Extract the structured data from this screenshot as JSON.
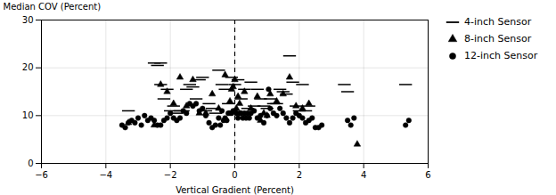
{
  "chart_data": {
    "type": "scatter",
    "title": "",
    "xlabel": "Vertical Gradient (Percent)",
    "ylabel": "Median COV (Percent)",
    "xlim": [
      -6,
      6
    ],
    "ylim": [
      0,
      30
    ],
    "xticks": [
      -6,
      -4,
      -2,
      0,
      2,
      4,
      6
    ],
    "yticks": [
      0,
      10,
      20,
      30
    ],
    "vline_x": 0,
    "grid": true,
    "legend": "upper right",
    "series": [
      {
        "name": "4-inch Sensor",
        "color": "#000000",
        "marker": "dash",
        "x": [
          -3.3,
          -2.5,
          -2.4,
          -2.3,
          -2.3,
          -2.2,
          -2.1,
          -2.0,
          -1.9,
          -1.8,
          -1.7,
          -1.6,
          -1.5,
          -1.4,
          -1.3,
          -1.2,
          -1.1,
          -1.0,
          -0.9,
          -0.8,
          -0.7,
          -0.6,
          -0.5,
          -0.4,
          -0.3,
          -0.2,
          -0.1,
          0.0,
          0.1,
          0.2,
          0.3,
          0.4,
          0.5,
          0.6,
          0.7,
          0.8,
          0.9,
          1.0,
          1.1,
          1.2,
          1.3,
          1.4,
          1.5,
          1.6,
          1.7,
          1.8,
          1.9,
          2.0,
          2.1,
          2.2,
          2.3,
          3.4,
          3.5,
          5.3
        ],
        "values": [
          11.0,
          21.0,
          20.5,
          16.5,
          21.0,
          13.5,
          15.5,
          11.0,
          12.0,
          10.5,
          11.0,
          11.0,
          15.5,
          16.5,
          16.0,
          13.5,
          17.5,
          18.0,
          11.0,
          12.5,
          11.5,
          10.5,
          19.5,
          16.5,
          15.5,
          12.5,
          18.0,
          16.5,
          17.5,
          13.5,
          15.5,
          11.5,
          17.0,
          12.0,
          15.5,
          13.5,
          12.0,
          11.5,
          13.5,
          12.5,
          12.5,
          15.5,
          15.0,
          14.5,
          22.5,
          17.0,
          12.0,
          11.0,
          16.5,
          11.0,
          12.0,
          16.5,
          15.0,
          16.5
        ]
      },
      {
        "name": "8-inch Sensor",
        "color": "#000000",
        "marker": "triangle",
        "x": [
          -3.3,
          -2.5,
          -2.3,
          -2.1,
          -1.9,
          -1.7,
          -1.5,
          -1.3,
          -1.1,
          -0.9,
          -0.7,
          -0.5,
          -0.3,
          -0.15,
          -0.1,
          -0.05,
          0.0,
          0.05,
          0.1,
          0.15,
          0.3,
          0.5,
          0.7,
          0.8,
          0.9,
          1.0,
          1.1,
          1.3,
          1.5,
          1.7,
          1.9,
          2.1,
          2.3,
          3.8
        ],
        "values": [
          8.5,
          8.0,
          16.5,
          15.0,
          12.5,
          18.0,
          12.0,
          17.5,
          10.5,
          10.5,
          14.5,
          11.5,
          18.5,
          13.0,
          15.5,
          16.0,
          17.5,
          11.5,
          14.0,
          12.5,
          15.0,
          11.5,
          14.0,
          9.0,
          10.5,
          10.0,
          14.5,
          13.0,
          14.5,
          18.0,
          12.0,
          11.5,
          12.5,
          4.0
        ]
      },
      {
        "name": "12-inch Sensor",
        "color": "#000000",
        "marker": "circle",
        "x": [
          -3.5,
          -3.4,
          -3.3,
          -3.2,
          -3.1,
          -3.0,
          -2.9,
          -2.8,
          -2.7,
          -2.6,
          -2.5,
          -2.4,
          -2.3,
          -2.2,
          -2.1,
          -2.0,
          -1.9,
          -1.8,
          -1.7,
          -1.6,
          -1.5,
          -1.4,
          -1.3,
          -1.2,
          -1.1,
          -1.0,
          -0.9,
          -0.8,
          -0.7,
          -0.6,
          -0.5,
          -0.45,
          -0.4,
          -0.35,
          -0.3,
          -0.25,
          -0.2,
          -0.15,
          -0.1,
          -0.05,
          0.0,
          0.05,
          0.1,
          0.15,
          0.2,
          0.25,
          0.3,
          0.35,
          0.4,
          0.45,
          0.5,
          0.6,
          0.7,
          0.8,
          0.9,
          1.0,
          1.05,
          1.1,
          1.2,
          1.3,
          1.4,
          1.5,
          1.6,
          1.7,
          1.8,
          1.9,
          2.0,
          2.1,
          2.2,
          2.3,
          2.4,
          2.5,
          2.6,
          2.7,
          3.5,
          3.6,
          3.7,
          5.3,
          5.4
        ],
        "values": [
          8.0,
          7.5,
          8.5,
          9.0,
          8.5,
          9.5,
          8.0,
          10.0,
          9.0,
          9.5,
          9.0,
          8.0,
          8.0,
          9.0,
          9.5,
          10.5,
          9.5,
          9.0,
          9.5,
          11.0,
          10.5,
          12.5,
          12.0,
          12.5,
          11.0,
          11.5,
          10.0,
          8.5,
          7.5,
          8.0,
          9.5,
          8.0,
          11.0,
          9.0,
          9.5,
          9.0,
          10.5,
          10.5,
          10.5,
          11.0,
          11.0,
          10.5,
          9.5,
          10.5,
          10.5,
          9.5,
          10.5,
          9.5,
          10.5,
          9.5,
          10.5,
          11.0,
          9.5,
          10.0,
          8.5,
          10.0,
          15.5,
          11.5,
          10.5,
          10.0,
          11.5,
          10.5,
          9.5,
          8.5,
          9.5,
          10.5,
          10.0,
          9.5,
          8.5,
          9.0,
          9.5,
          7.5,
          7.5,
          8.0,
          9.0,
          8.0,
          9.5,
          8.0,
          9.0
        ]
      }
    ]
  }
}
